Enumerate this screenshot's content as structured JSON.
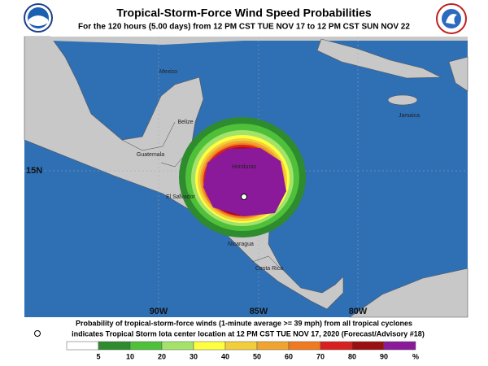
{
  "header": {
    "title": "Tropical-Storm-Force Wind Speed Probabilities",
    "subtitle": "For the 120 hours (5.00 days) from 12 PM CST TUE NOV 17 to 12 PM CST SUN NOV 22"
  },
  "map": {
    "countries": [
      "Mexico",
      "Belize",
      "Guatemala",
      "Honduras",
      "El Salvador",
      "Nicaragua",
      "Costa Rica",
      "Jamaica"
    ],
    "longitudes": [
      "90W",
      "85W",
      "80W"
    ],
    "latitudes": [
      "15N"
    ]
  },
  "caption": [
    "Probability of tropical-storm-force winds (1-minute average >= 39 mph) from all tropical cyclones",
    "indicates Tropical Storm Iota center location at 12 PM CST TUE NOV 17, 2020 (Forecast/Advisory #18)"
  ],
  "legend": {
    "labels": [
      "5",
      "10",
      "20",
      "30",
      "40",
      "50",
      "60",
      "70",
      "80",
      "90",
      "%"
    ],
    "colors": [
      "#ffffff",
      "#2e8b2e",
      "#4fc03a",
      "#a4e36a",
      "#ffff40",
      "#f2cf3a",
      "#f0a430",
      "#f07a20",
      "#d82020",
      "#9a1010",
      "#8a1a9a"
    ]
  }
}
